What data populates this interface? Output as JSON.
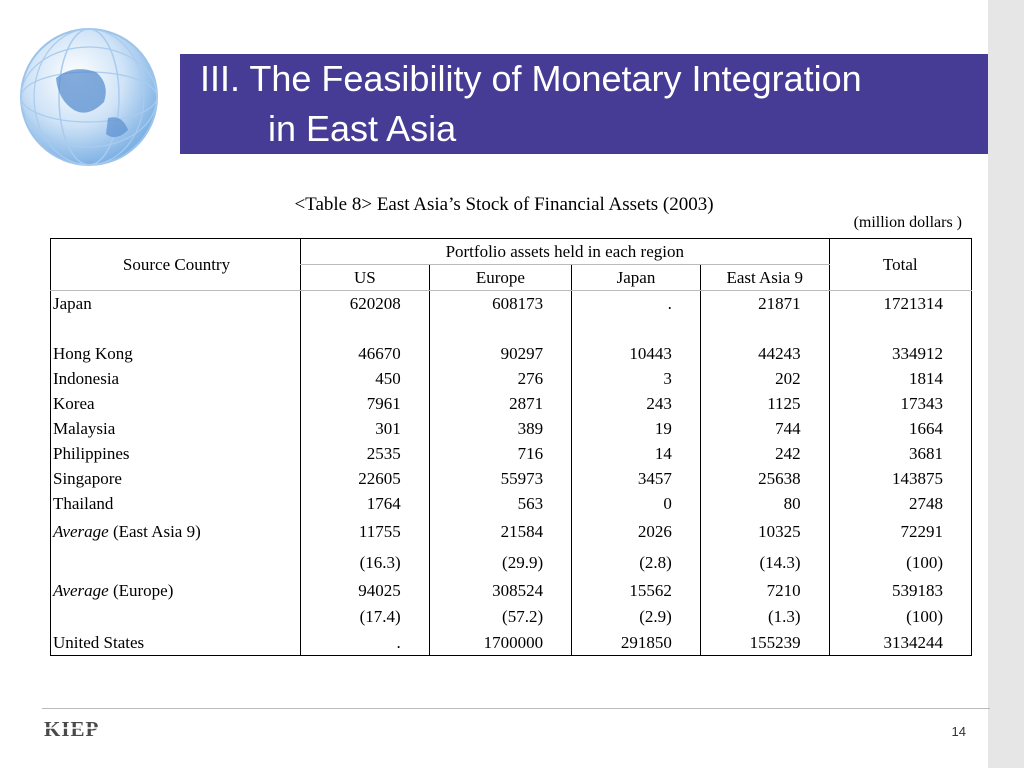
{
  "title": {
    "line1": "III. The Feasibility of Monetary Integration",
    "line2": "in East Asia"
  },
  "caption": "<Table 8> East Asia’s Stock of Financial Assets (2003)",
  "unit": "(million dollars )",
  "table": {
    "source_header": "Source Country",
    "group_header": "Portfolio assets held in each region",
    "total_header": "Total",
    "columns": [
      "US",
      "Europe",
      "Japan",
      "East Asia 9"
    ],
    "rows": [
      {
        "label": "Japan",
        "values": [
          "620208",
          "608173",
          ".",
          "21871",
          "1721314"
        ]
      },
      {
        "label": "Hong Kong",
        "values": [
          "46670",
          "90297",
          "10443",
          "44243",
          "334912"
        ]
      },
      {
        "label": "Indonesia",
        "values": [
          "450",
          "276",
          "3",
          "202",
          "1814"
        ]
      },
      {
        "label": "Korea",
        "values": [
          "7961",
          "2871",
          "243",
          "1125",
          "17343"
        ]
      },
      {
        "label": "Malaysia",
        "values": [
          "301",
          "389",
          "19",
          "744",
          "1664"
        ]
      },
      {
        "label": "Philippines",
        "values": [
          "2535",
          "716",
          "14",
          "242",
          "3681"
        ]
      },
      {
        "label": "Singapore",
        "values": [
          "22605",
          "55973",
          "3457",
          "25638",
          "143875"
        ]
      },
      {
        "label": "Thailand",
        "values": [
          "1764",
          "563",
          "0",
          "80",
          "2748"
        ]
      }
    ],
    "avg_ea": {
      "label_em": "Average",
      "label_rest": " (East Asia 9)",
      "values": [
        "11755",
        "21584",
        "2026",
        "10325",
        "72291"
      ],
      "shares": [
        "(16.3)",
        "(29.9)",
        "(2.8)",
        "(14.3)",
        "(100)"
      ]
    },
    "avg_eu": {
      "label_em": "Average",
      "label_rest": " (Europe)",
      "values": [
        "94025",
        "308524",
        "15562",
        "7210",
        "539183"
      ],
      "shares": [
        "(17.4)",
        "(57.2)",
        "(2.9)",
        "(1.3)",
        "(100)"
      ]
    },
    "us_row": {
      "label": "United States",
      "values": [
        ".",
        "1700000",
        "291850",
        "155239",
        "3134244"
      ]
    }
  },
  "logo_text": "KIEP",
  "page_number": "14",
  "colors": {
    "title_bar": "#463c96",
    "side_strip": "#e6e6e6"
  }
}
